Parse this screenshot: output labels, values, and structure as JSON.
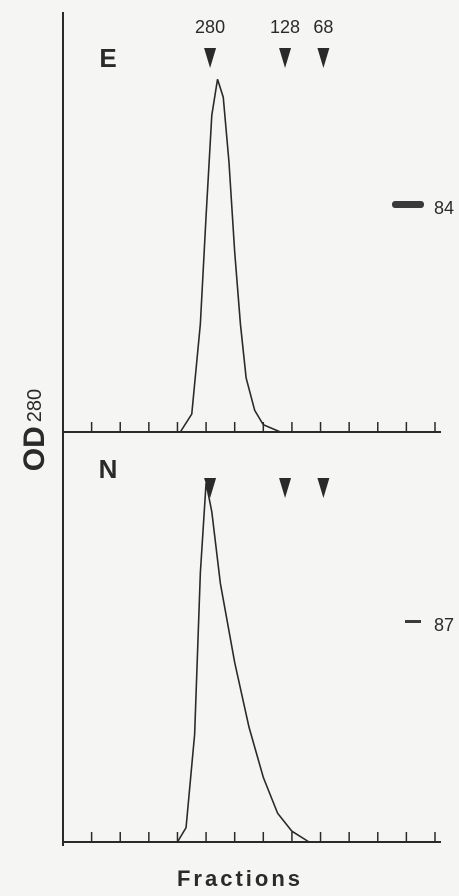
{
  "ylabel": "OD",
  "ylabel_subscript": "280",
  "chart_data": [
    {
      "type": "line",
      "panel_label": "E",
      "xlim": [
        0,
        13
      ],
      "ylim": [
        0,
        1
      ],
      "xticks": [
        0,
        1,
        2,
        3,
        4,
        5,
        6,
        7,
        8,
        9,
        10,
        11,
        12,
        13
      ],
      "x": [
        4.1,
        4.5,
        4.8,
        5.0,
        5.2,
        5.4,
        5.6,
        5.8,
        6.0,
        6.2,
        6.4,
        6.7,
        7.0,
        7.6
      ],
      "series": [
        {
          "color": "#2a2a2a",
          "values": [
            0,
            0.05,
            0.3,
            0.6,
            0.88,
            0.98,
            0.93,
            0.75,
            0.5,
            0.3,
            0.15,
            0.06,
            0.02,
            0
          ]
        }
      ],
      "markers": [
        {
          "label": "280",
          "x": 5.14
        },
        {
          "label": "128",
          "x": 7.76
        },
        {
          "label": "68",
          "x": 9.1
        }
      ],
      "band_label": "84"
    },
    {
      "type": "line",
      "panel_label": "N",
      "xlim": [
        0,
        13
      ],
      "ylim": [
        0,
        1
      ],
      "xticks": [
        0,
        1,
        2,
        3,
        4,
        5,
        6,
        7,
        8,
        9,
        10,
        11,
        12,
        13
      ],
      "x": [
        4.0,
        4.3,
        4.6,
        4.8,
        5.0,
        5.2,
        5.5,
        6.0,
        6.5,
        7.0,
        7.5,
        8.0,
        8.6
      ],
      "series": [
        {
          "color": "#2a2a2a",
          "values": [
            0,
            0.04,
            0.3,
            0.75,
            1.0,
            0.92,
            0.72,
            0.5,
            0.32,
            0.18,
            0.08,
            0.03,
            0
          ]
        }
      ],
      "markers": [
        {
          "x": 5.14
        },
        {
          "x": 7.76
        },
        {
          "x": 9.1
        }
      ],
      "band_label": "87",
      "xlabel": "Fractions"
    }
  ]
}
